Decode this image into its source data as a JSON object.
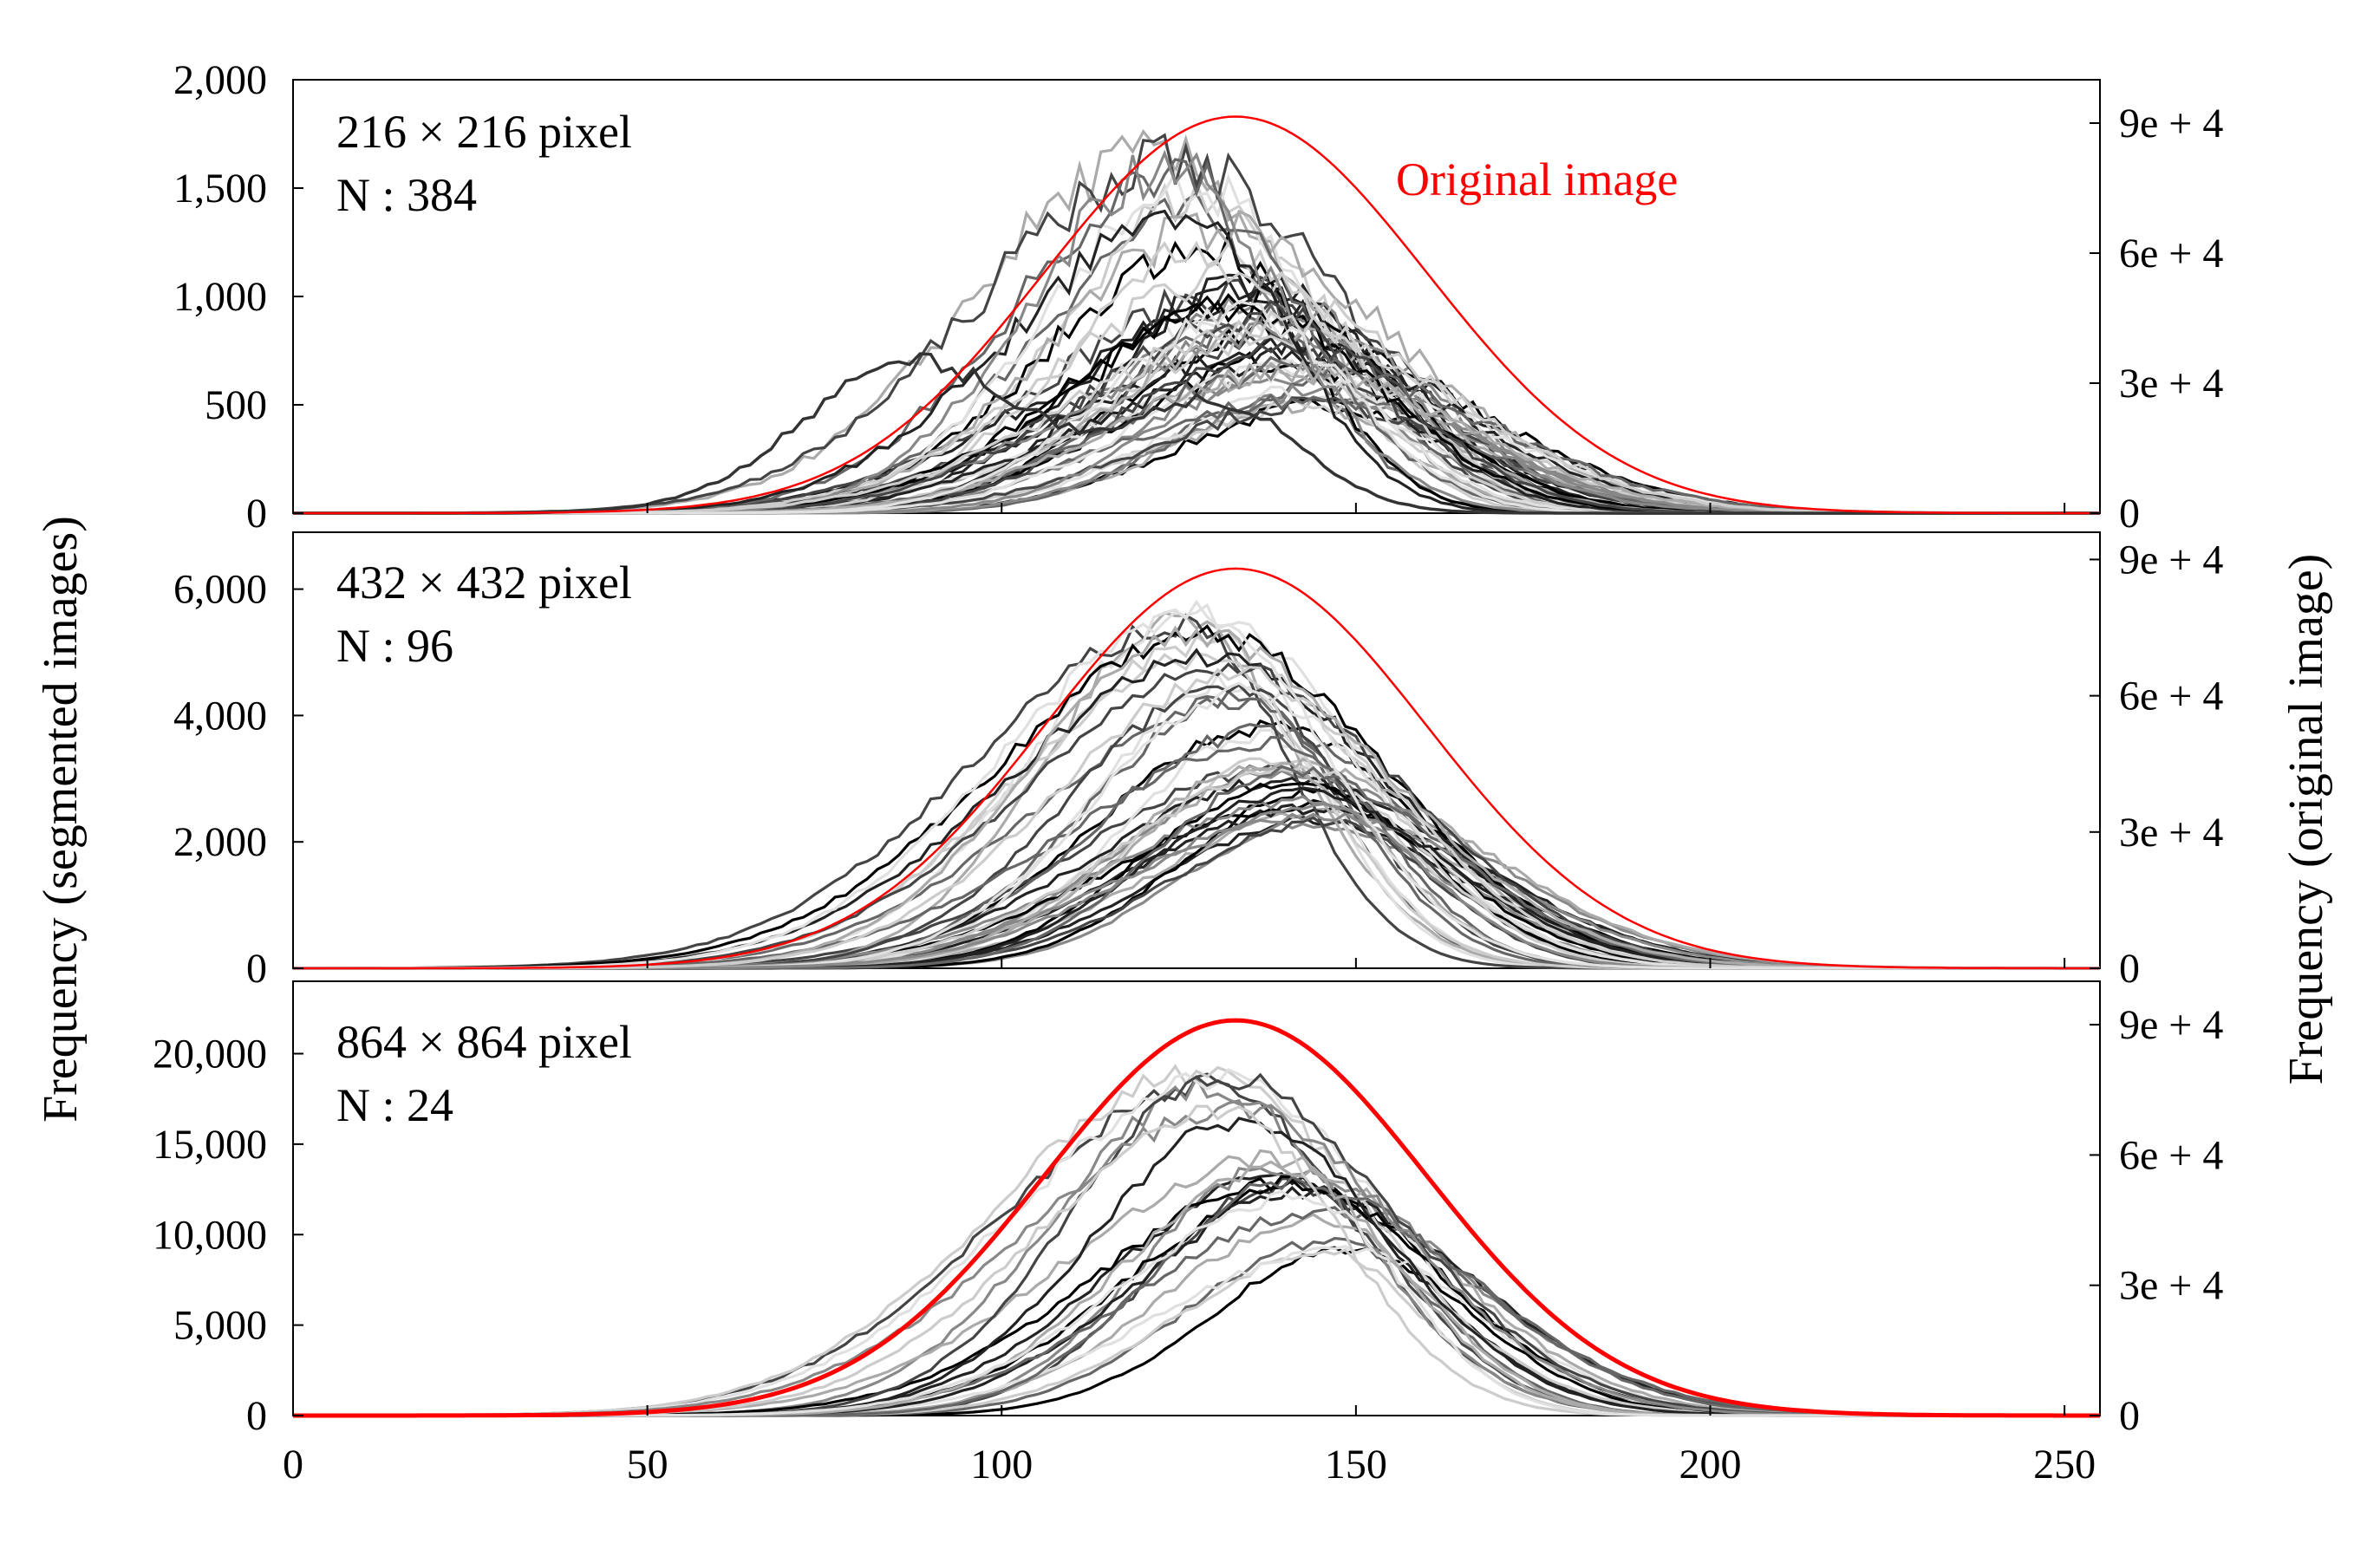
{
  "chart_data": {
    "type": "line",
    "x_axis": {
      "ticks": [
        "0",
        "50",
        "100",
        "150",
        "200",
        "250"
      ],
      "range": [
        0,
        255
      ]
    },
    "left_axis_title": "Frequency (segmented images)",
    "right_axis_title": "Frequency (original image)",
    "colors": {
      "original": "#ff0000",
      "segmented": [
        "#000000",
        "#222222",
        "#444444",
        "#666666",
        "#888888",
        "#aaaaaa",
        "#cccccc",
        "#e0e0e0"
      ]
    },
    "panels": [
      {
        "id": "216",
        "size_label": "216 × 216 pixel",
        "n_label": "N : 384",
        "series_label": "Original image",
        "left_ticks": [
          "0",
          "500",
          "1,000",
          "1,500",
          "2,000"
        ],
        "left_range": [
          0,
          2000
        ],
        "right_ticks": [
          "0",
          "3e + 4",
          "6e + 4",
          "9e + 4"
        ],
        "right_range": [
          0,
          100000
        ],
        "original_peak": 91500,
        "original_center": 133,
        "original_sigma": 27,
        "segment_curve_count": 48,
        "segment_peak_min": 500,
        "segment_peak_max": 1650,
        "segment_center_range": [
          122,
          145
        ],
        "outlier": {
          "peak1": 700,
          "center1": 88,
          "peak2": 500,
          "center2": 130
        }
      },
      {
        "id": "432",
        "size_label": "432 × 432 pixel",
        "n_label": "N : 96",
        "series_label": "",
        "left_ticks": [
          "0",
          "2,000",
          "4,000",
          "6,000"
        ],
        "left_range": [
          0,
          6900
        ],
        "right_ticks": [
          "0",
          "3e + 4",
          "6e + 4",
          "9e + 4"
        ],
        "right_range": [
          0,
          96000
        ],
        "original_peak": 88000,
        "original_center": 133,
        "original_sigma": 27,
        "segment_curve_count": 40,
        "segment_peak_min": 2300,
        "segment_peak_max": 5700,
        "segment_center_range": [
          126,
          145
        ]
      },
      {
        "id": "864",
        "size_label": "864 × 864 pixel",
        "n_label": "N : 24",
        "series_label": "",
        "left_ticks": [
          "0",
          "5,000",
          "10,000",
          "15,000",
          "20,000"
        ],
        "left_range": [
          0,
          24000
        ],
        "right_ticks": [
          "0",
          "3e + 4",
          "6e + 4",
          "9e + 4"
        ],
        "right_range": [
          0,
          100000
        ],
        "original_peak": 91000,
        "original_center": 133,
        "original_sigma": 27,
        "segment_curve_count": 24,
        "segment_peak_min": 9000,
        "segment_peak_max": 19200,
        "segment_center_range": [
          128,
          148
        ]
      }
    ]
  }
}
